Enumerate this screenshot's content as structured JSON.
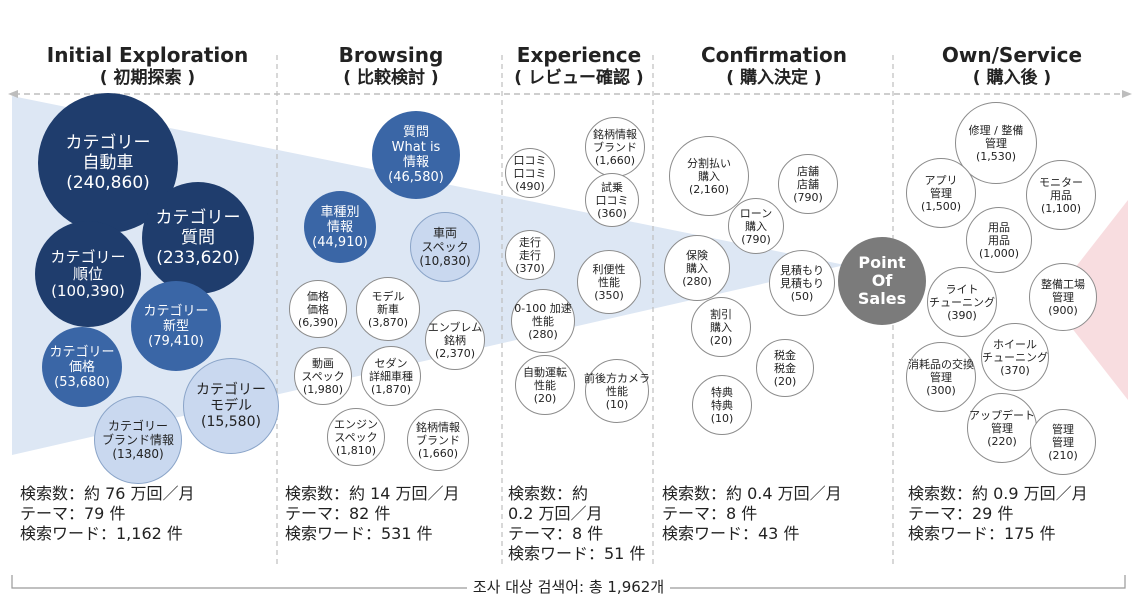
{
  "stages": [
    {
      "en": "Initial Exploration",
      "jp": "( 初期探索 )",
      "stats": [
        "検索数：約 76 万回／月",
        "テーマ：79 件",
        "検索ワード：1,162 件"
      ]
    },
    {
      "en": "Browsing",
      "jp": "( 比較検討 )",
      "stats": [
        "検索数：約 14 万回／月",
        "テーマ：82 件",
        "検索ワード：531 件"
      ]
    },
    {
      "en": "Experience",
      "jp": "( レビュー確認 )",
      "stats": [
        "検索数：約",
        "0.2 万回／月",
        "テーマ：8 件",
        "検索ワード：51 件"
      ]
    },
    {
      "en": "Confirmation",
      "jp": "( 購入決定 )",
      "stats": [
        "検索数：約 0.4 万回／月",
        "テーマ：8 件",
        "検索ワード：43 件"
      ]
    },
    {
      "en": "Own/Service",
      "jp": "( 購入後 )",
      "stats": [
        "検索数：約 0.9 万回／月",
        "テーマ：29 件",
        "検索ワード：175 件"
      ]
    }
  ],
  "bubbles": [
    {
      "lines": [
        "カテゴリー",
        "自動車",
        "(240,860)"
      ],
      "style": "dark"
    },
    {
      "lines": [
        "カテゴリー",
        "質問",
        "(233,620)"
      ],
      "style": "dark"
    },
    {
      "lines": [
        "カテゴリー",
        "順位",
        "(100,390)"
      ],
      "style": "dark"
    },
    {
      "lines": [
        "カテゴリー",
        "新型",
        "(79,410)"
      ],
      "style": "mid"
    },
    {
      "lines": [
        "カテゴリー",
        "価格",
        "(53,680)"
      ],
      "style": "mid"
    },
    {
      "lines": [
        "カテゴリー",
        "モデル",
        "(15,580)"
      ],
      "style": "light"
    },
    {
      "lines": [
        "カテゴリー",
        "ブランド情報",
        "(13,480)"
      ],
      "style": "light"
    },
    {
      "lines": [
        "質問",
        "What is",
        "情報",
        "(46,580)"
      ],
      "style": "mid"
    },
    {
      "lines": [
        "車種別",
        "情報",
        "(44,910)"
      ],
      "style": "mid"
    },
    {
      "lines": [
        "車両",
        "スペック",
        "(10,830)"
      ],
      "style": "light"
    },
    {
      "lines": [
        "価格",
        "価格",
        "(6,390)"
      ],
      "style": "white"
    },
    {
      "lines": [
        "モデル",
        "新車",
        "(3,870)"
      ],
      "style": "white"
    },
    {
      "lines": [
        "エンブレム",
        "銘柄",
        "(2,370)"
      ],
      "style": "white"
    },
    {
      "lines": [
        "動画",
        "スペック",
        "(1,980)"
      ],
      "style": "white"
    },
    {
      "lines": [
        "セダン",
        "詳細車種",
        "(1,870)"
      ],
      "style": "white"
    },
    {
      "lines": [
        "エンジン",
        "スペック",
        "(1,810)"
      ],
      "style": "white"
    },
    {
      "lines": [
        "銘柄情報",
        "ブランド",
        "(1,660)"
      ],
      "style": "white"
    },
    {
      "lines": [
        "口コミ",
        "口コミ",
        "(490)"
      ],
      "style": "white"
    },
    {
      "lines": [
        "銘柄情報",
        "ブランド",
        "(1,660)"
      ],
      "style": "white"
    },
    {
      "lines": [
        "試乗",
        "口コミ",
        "(360)"
      ],
      "style": "white"
    },
    {
      "lines": [
        "走行",
        "走行",
        "(370)"
      ],
      "style": "white"
    },
    {
      "lines": [
        "利便性",
        "性能",
        "(350)"
      ],
      "style": "white"
    },
    {
      "lines": [
        "0-100 加速",
        "性能",
        "(280)"
      ],
      "style": "white"
    },
    {
      "lines": [
        "自動運転",
        "性能",
        "(20)"
      ],
      "style": "white"
    },
    {
      "lines": [
        "前後方カメラ",
        "性能",
        "(10)"
      ],
      "style": "white"
    },
    {
      "lines": [
        "分割払い",
        "購入",
        "(2,160)"
      ],
      "style": "white"
    },
    {
      "lines": [
        "店舗",
        "店舗",
        "(790)"
      ],
      "style": "white"
    },
    {
      "lines": [
        "ローン",
        "購入",
        "(790)"
      ],
      "style": "white"
    },
    {
      "lines": [
        "保険",
        "購入",
        "(280)"
      ],
      "style": "white"
    },
    {
      "lines": [
        "見積もり",
        "見積もり",
        "(50)"
      ],
      "style": "white"
    },
    {
      "lines": [
        "割引",
        "購入",
        "(20)"
      ],
      "style": "white"
    },
    {
      "lines": [
        "税金",
        "税金",
        "(20)"
      ],
      "style": "white"
    },
    {
      "lines": [
        "特典",
        "特典",
        "(10)"
      ],
      "style": "white"
    },
    {
      "lines": [
        "Point",
        "Of",
        "Sales"
      ],
      "style": "pos"
    },
    {
      "lines": [
        "修理 / 整備",
        "管理",
        "(1,530)"
      ],
      "style": "white"
    },
    {
      "lines": [
        "アプリ",
        "管理",
        "(1,500)"
      ],
      "style": "white"
    },
    {
      "lines": [
        "モニター",
        "用品",
        "(1,100)"
      ],
      "style": "white"
    },
    {
      "lines": [
        "用品",
        "用品",
        "(1,000)"
      ],
      "style": "white"
    },
    {
      "lines": [
        "ライト",
        "チューニング",
        "(390)"
      ],
      "style": "white"
    },
    {
      "lines": [
        "整備工場",
        "管理",
        "(900)"
      ],
      "style": "white"
    },
    {
      "lines": [
        "ホイール",
        "チューニング",
        "(370)"
      ],
      "style": "white"
    },
    {
      "lines": [
        "消耗品の交換",
        "管理",
        "(300)"
      ],
      "style": "white"
    },
    {
      "lines": [
        "アップデート",
        "管理",
        "(220)"
      ],
      "style": "white"
    },
    {
      "lines": [
        "管理",
        "管理",
        "(210)"
      ],
      "style": "white"
    }
  ],
  "footer": "조사 대상 검색어: 총 1,962개",
  "colors": {
    "dark": "#1f3d6d",
    "mid": "#3a66a6",
    "light": "#c9d8ef",
    "pos": "#7b7b7b",
    "funnel": "#dde7f4",
    "after": "#f8dde0",
    "divider": "#bdbdbd"
  }
}
